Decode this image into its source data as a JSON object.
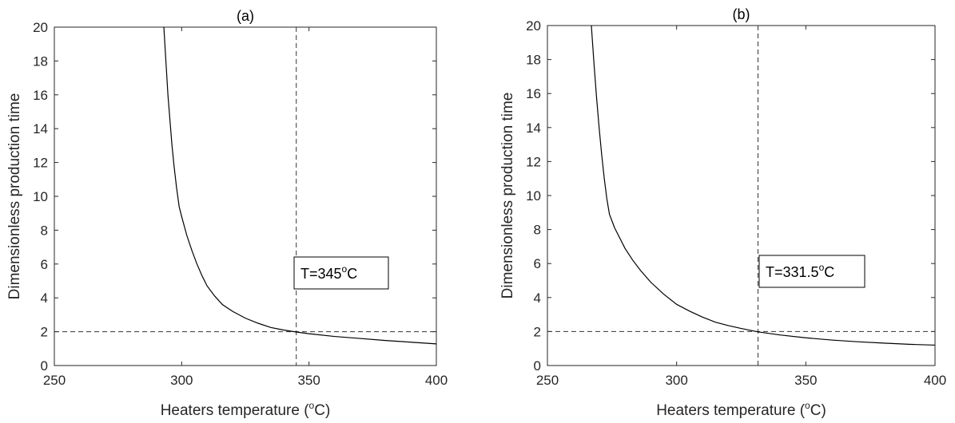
{
  "chart_data": [
    {
      "type": "line",
      "title": "(a)",
      "xlabel": {
        "prefix": "Heaters temperature (",
        "sup": "o",
        "suffix": "C)"
      },
      "ylabel": "Dimensionless production time",
      "xlim": [
        250,
        400
      ],
      "ylim": [
        0,
        20
      ],
      "xticks": [
        "250",
        "300",
        "350",
        "400"
      ],
      "yticks": [
        "0",
        "2",
        "4",
        "6",
        "8",
        "10",
        "12",
        "14",
        "16",
        "18",
        "20"
      ],
      "curve": {
        "x": [
          293,
          293.8,
          294.6,
          295.4,
          296.2,
          297,
          298,
          299,
          300,
          302,
          304,
          306,
          308,
          310,
          313,
          316,
          320,
          325,
          330,
          335,
          340,
          345,
          350,
          360,
          370,
          380,
          390,
          400
        ],
        "y": [
          20,
          18,
          16,
          14.5,
          13,
          11.8,
          10.5,
          9.4,
          8.8,
          7.7,
          6.8,
          6.0,
          5.3,
          4.7,
          4.1,
          3.6,
          3.2,
          2.8,
          2.5,
          2.25,
          2.1,
          1.98,
          1.88,
          1.72,
          1.6,
          1.48,
          1.38,
          1.28
        ]
      },
      "hline_y": 2,
      "vline_x": 345,
      "annotation": {
        "prefix": "T=345",
        "sup": "o",
        "suffix": "C"
      }
    },
    {
      "type": "line",
      "title": "(b)",
      "xlabel": {
        "prefix": "Heaters temperature (",
        "sup": "o",
        "suffix": "C)"
      },
      "ylabel": "Dimensionless production time",
      "xlim": [
        250,
        400
      ],
      "ylim": [
        0,
        20
      ],
      "xticks": [
        "250",
        "300",
        "350",
        "400"
      ],
      "yticks": [
        "0",
        "2",
        "4",
        "6",
        "8",
        "10",
        "12",
        "14",
        "16",
        "18",
        "20"
      ],
      "curve": {
        "x": [
          267,
          268,
          269,
          270,
          271,
          272,
          273,
          274,
          276,
          278,
          280,
          283,
          286,
          290,
          295,
          300,
          305,
          310,
          315,
          320,
          325,
          331.5,
          340,
          350,
          360,
          370,
          380,
          390,
          400
        ],
        "y": [
          20,
          17.8,
          15.8,
          14,
          12.4,
          11,
          9.8,
          8.9,
          8.1,
          7.5,
          6.9,
          6.2,
          5.6,
          4.9,
          4.2,
          3.6,
          3.2,
          2.85,
          2.55,
          2.35,
          2.18,
          1.98,
          1.8,
          1.63,
          1.5,
          1.4,
          1.32,
          1.25,
          1.2
        ]
      },
      "hline_y": 2,
      "vline_x": 331.5,
      "annotation": {
        "prefix": "T=331.5",
        "sup": "o",
        "suffix": "C"
      }
    }
  ]
}
